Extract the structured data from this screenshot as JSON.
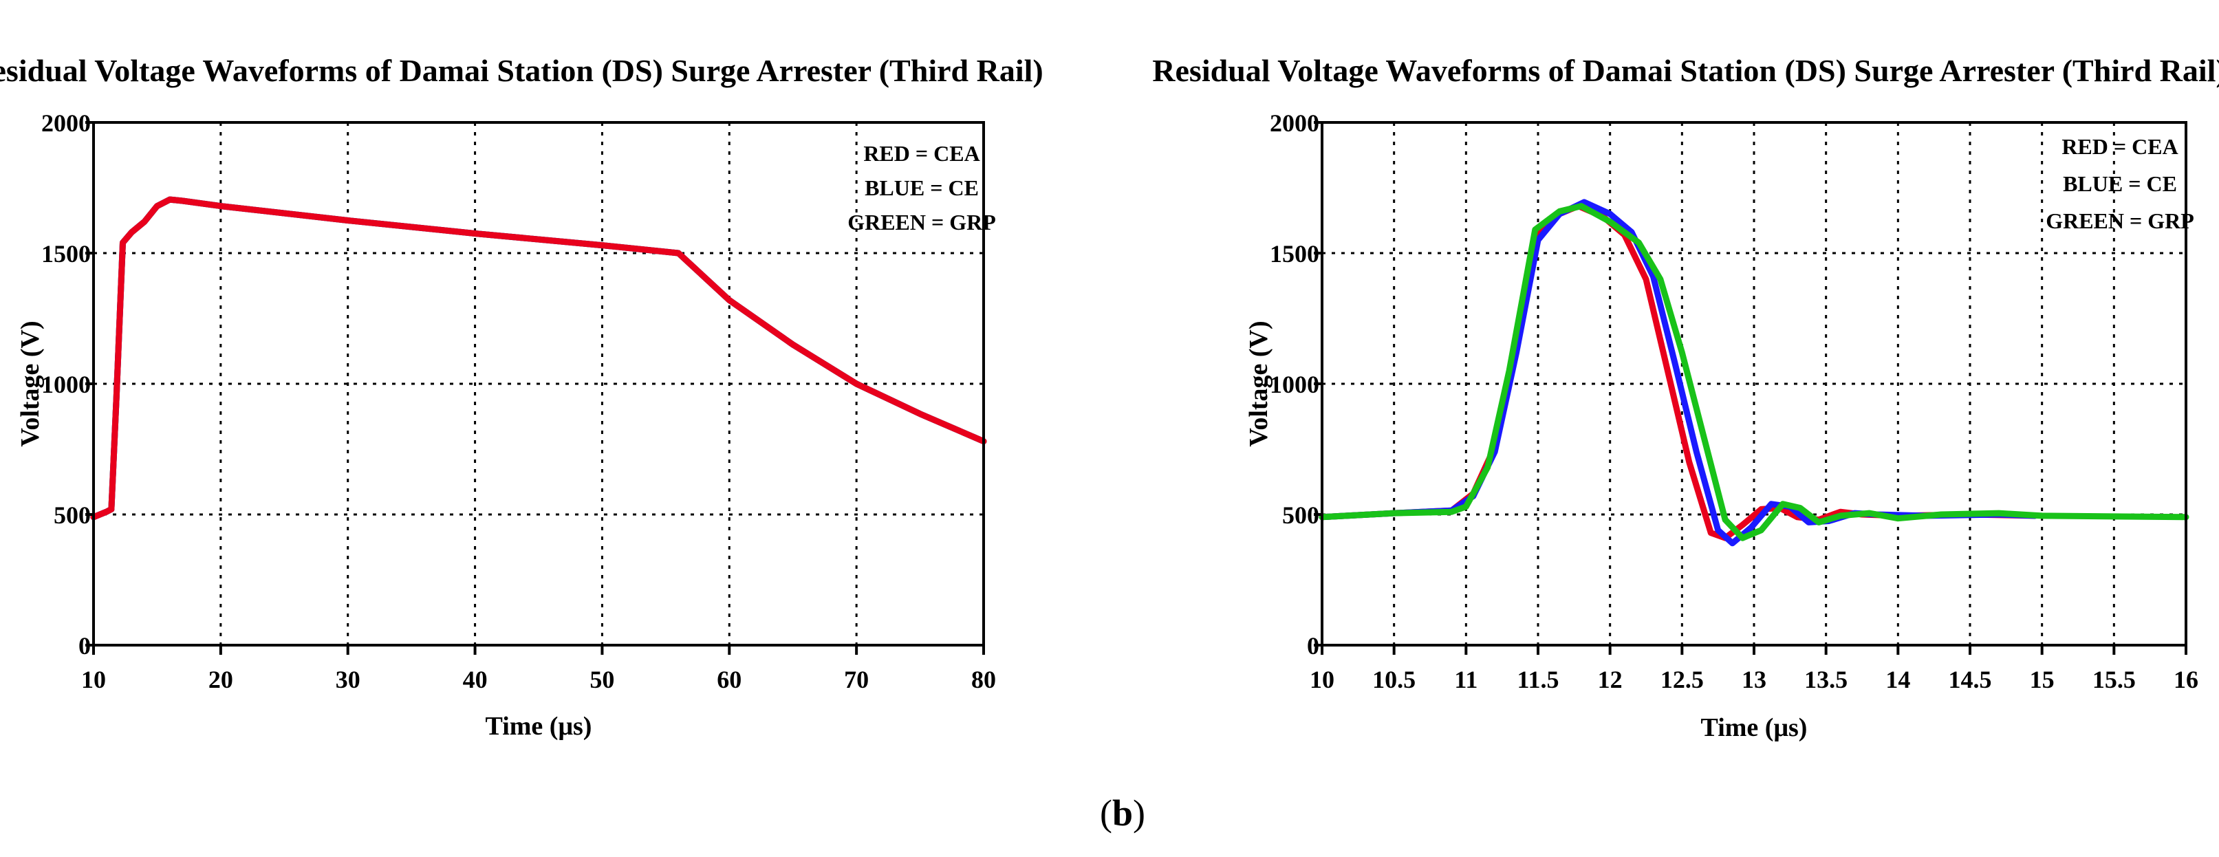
{
  "caption": {
    "open": "(",
    "letter": "b",
    "close": ")"
  },
  "chart_data": [
    {
      "type": "line",
      "title": "Residual Voltage Waveforms of Damai Station (DS) Surge Arrester (Third Rail)",
      "xlabel": "Time (μs)",
      "ylabel": "Voltage (V)",
      "xlim": [
        10,
        80
      ],
      "ylim": [
        0,
        2000
      ],
      "xticks": [
        10,
        20,
        30,
        40,
        50,
        60,
        70,
        80
      ],
      "xtick_labels": [
        "10",
        "20",
        "30",
        "40",
        "50",
        "60",
        "70",
        "80"
      ],
      "yticks": [
        0,
        500,
        1000,
        1500,
        2000
      ],
      "ytick_labels": [
        "0",
        "500",
        "1000",
        "1500",
        "2000"
      ],
      "grid": true,
      "legend_position": "top-right",
      "legend": [
        "RED = CEA",
        "BLUE = CE",
        "GREEN = GRP"
      ],
      "series": [
        {
          "name": "CEA",
          "color": "#e8001c",
          "points": [
            [
              10,
              490
            ],
            [
              11,
              510
            ],
            [
              11.4,
              520
            ],
            [
              11.8,
              950
            ],
            [
              12.3,
              1540
            ],
            [
              13,
              1580
            ],
            [
              14,
              1620
            ],
            [
              15,
              1680
            ],
            [
              16,
              1705
            ],
            [
              17,
              1700
            ],
            [
              20,
              1680
            ],
            [
              30,
              1625
            ],
            [
              40,
              1575
            ],
            [
              50,
              1530
            ],
            [
              56,
              1500
            ],
            [
              60,
              1320
            ],
            [
              65,
              1150
            ],
            [
              70,
              1000
            ],
            [
              75,
              885
            ],
            [
              80,
              780
            ]
          ]
        },
        {
          "name": "CE",
          "color": "#1a1aff",
          "points": [
            [
              10,
              490
            ],
            [
              11,
              510
            ],
            [
              11.4,
              520
            ],
            [
              11.8,
              950
            ],
            [
              12.3,
              1540
            ],
            [
              13,
              1580
            ],
            [
              14,
              1620
            ],
            [
              15,
              1680
            ],
            [
              16,
              1705
            ],
            [
              17,
              1700
            ],
            [
              20,
              1680
            ],
            [
              30,
              1625
            ],
            [
              40,
              1575
            ],
            [
              50,
              1530
            ],
            [
              56,
              1500
            ],
            [
              60,
              1320
            ],
            [
              65,
              1150
            ],
            [
              70,
              1000
            ],
            [
              75,
              885
            ],
            [
              80,
              780
            ]
          ]
        },
        {
          "name": "GRP",
          "color": "#19c219",
          "points": [
            [
              10,
              490
            ],
            [
              11,
              510
            ],
            [
              11.4,
              520
            ],
            [
              11.8,
              950
            ],
            [
              12.3,
              1540
            ],
            [
              13,
              1580
            ],
            [
              14,
              1620
            ],
            [
              15,
              1680
            ],
            [
              16,
              1705
            ],
            [
              17,
              1700
            ],
            [
              20,
              1680
            ],
            [
              30,
              1625
            ],
            [
              40,
              1575
            ],
            [
              50,
              1530
            ],
            [
              56,
              1500
            ],
            [
              60,
              1320
            ],
            [
              65,
              1150
            ],
            [
              70,
              1000
            ],
            [
              75,
              885
            ],
            [
              80,
              780
            ]
          ]
        }
      ]
    },
    {
      "type": "line",
      "title": "Residual Voltage Waveforms of Damai Station (DS) Surge Arrester (Third Rail)",
      "xlabel": "Time (μs)",
      "ylabel": "Voltage (V)",
      "xlim": [
        10,
        16
      ],
      "ylim": [
        0,
        2000
      ],
      "xticks": [
        10,
        10.5,
        11,
        11.5,
        12,
        12.5,
        13,
        13.5,
        14,
        14.5,
        15,
        15.5,
        16
      ],
      "xtick_labels": [
        "10",
        "10.5",
        "11",
        "11.5",
        "12",
        "12.5",
        "13",
        "13.5",
        "14",
        "14.5",
        "15",
        "15.5",
        "16"
      ],
      "yticks": [
        0,
        500,
        1000,
        1500,
        2000
      ],
      "ytick_labels": [
        "0",
        "500",
        "1000",
        "1500",
        "2000"
      ],
      "grid": true,
      "legend_position": "top-right",
      "legend": [
        "RED = CEA",
        "BLUE = CE",
        "GREEN = GRP"
      ],
      "series": [
        {
          "name": "CEA",
          "color": "#e8001c",
          "points": [
            [
              10,
              490
            ],
            [
              10.5,
              505
            ],
            [
              10.9,
              515
            ],
            [
              11.05,
              580
            ],
            [
              11.2,
              760
            ],
            [
              11.35,
              1150
            ],
            [
              11.5,
              1570
            ],
            [
              11.65,
              1650
            ],
            [
              11.78,
              1680
            ],
            [
              11.95,
              1640
            ],
            [
              12.1,
              1570
            ],
            [
              12.25,
              1400
            ],
            [
              12.4,
              1050
            ],
            [
              12.55,
              700
            ],
            [
              12.7,
              430
            ],
            [
              12.8,
              410
            ],
            [
              12.92,
              460
            ],
            [
              13.05,
              520
            ],
            [
              13.18,
              525
            ],
            [
              13.3,
              490
            ],
            [
              13.45,
              480
            ],
            [
              13.6,
              510
            ],
            [
              13.75,
              500
            ],
            [
              14,
              495
            ],
            [
              14.5,
              500
            ],
            [
              14.95,
              495
            ]
          ]
        },
        {
          "name": "CE",
          "color": "#1a1aff",
          "points": [
            [
              10,
              490
            ],
            [
              10.5,
              505
            ],
            [
              10.9,
              515
            ],
            [
              11.05,
              570
            ],
            [
              11.2,
              740
            ],
            [
              11.35,
              1120
            ],
            [
              11.5,
              1550
            ],
            [
              11.65,
              1650
            ],
            [
              11.82,
              1695
            ],
            [
              12,
              1650
            ],
            [
              12.15,
              1580
            ],
            [
              12.3,
              1410
            ],
            [
              12.45,
              1080
            ],
            [
              12.6,
              740
            ],
            [
              12.75,
              440
            ],
            [
              12.85,
              390
            ],
            [
              12.98,
              450
            ],
            [
              13.12,
              540
            ],
            [
              13.25,
              530
            ],
            [
              13.38,
              470
            ],
            [
              13.52,
              475
            ],
            [
              13.7,
              505
            ],
            [
              13.85,
              500
            ],
            [
              14.2,
              495
            ],
            [
              14.7,
              500
            ],
            [
              14.95,
              495
            ]
          ]
        },
        {
          "name": "GRP",
          "color": "#19c219",
          "points": [
            [
              10,
              490
            ],
            [
              10.5,
              505
            ],
            [
              10.9,
              510
            ],
            [
              11,
              530
            ],
            [
              11.15,
              680
            ],
            [
              11.3,
              1050
            ],
            [
              11.48,
              1590
            ],
            [
              11.65,
              1660
            ],
            [
              11.8,
              1680
            ],
            [
              12,
              1620
            ],
            [
              12.2,
              1540
            ],
            [
              12.35,
              1400
            ],
            [
              12.5,
              1120
            ],
            [
              12.65,
              800
            ],
            [
              12.8,
              480
            ],
            [
              12.92,
              410
            ],
            [
              13.05,
              440
            ],
            [
              13.2,
              540
            ],
            [
              13.32,
              525
            ],
            [
              13.45,
              470
            ],
            [
              13.6,
              495
            ],
            [
              13.8,
              505
            ],
            [
              14,
              485
            ],
            [
              14.3,
              500
            ],
            [
              14.7,
              505
            ],
            [
              15,
              495
            ],
            [
              16,
              490
            ]
          ]
        }
      ]
    }
  ]
}
